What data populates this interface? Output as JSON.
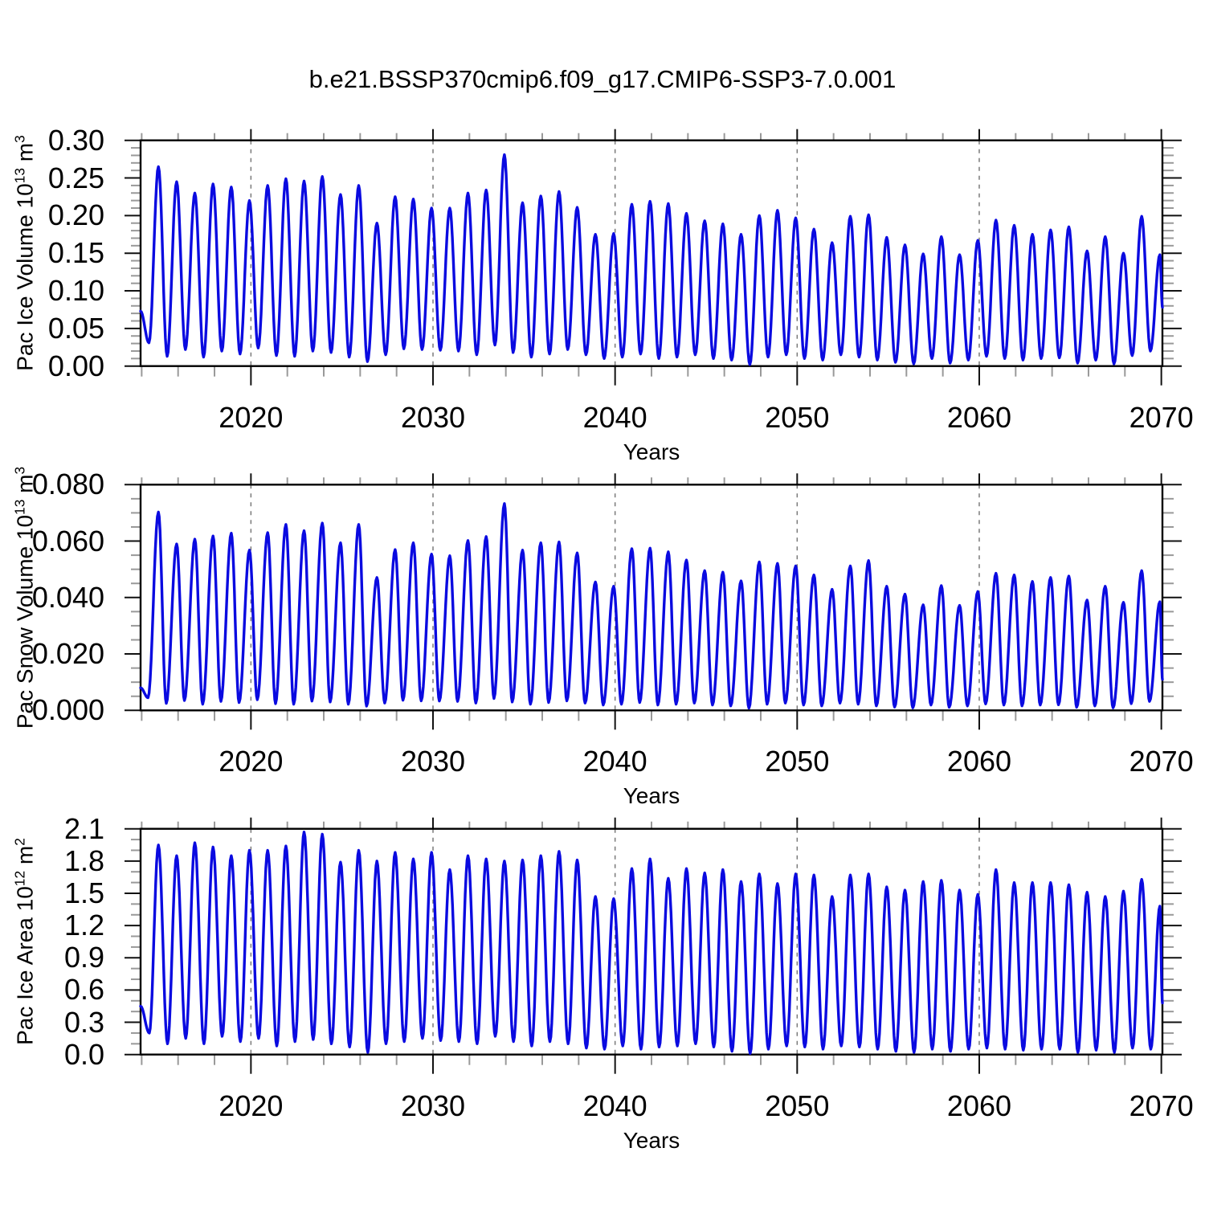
{
  "title": "b.e21.BSSP370cmip6.f09_g17.CMIP6-SSP3-7.0.001",
  "line_color": "#0a0ae0",
  "axes": {
    "x_label": "Years",
    "x_major_ticks": [
      2020,
      2030,
      2040,
      2050,
      2060,
      2070
    ],
    "x_major_tick_labels": [
      "2020",
      "2030",
      "2040",
      "2050",
      "2060",
      "2070"
    ],
    "x_minor_step_years": 2,
    "x_range": [
      2013.94,
      2070.06
    ],
    "gridlines_at": [
      2020,
      2030,
      2040,
      2050,
      2060
    ],
    "grid_style": "dashed-vertical-gray"
  },
  "chart_data": [
    {
      "type": "line",
      "id": "pac-ice-volume",
      "ylabel_text": "Pac Ice Volume 10^13 m^3",
      "ylabel_parts": [
        {
          "text": "Pac Ice Volume 10"
        },
        {
          "text": "13",
          "sup": true
        },
        {
          "text": " m"
        },
        {
          "text": "3",
          "sup": true
        }
      ],
      "xlabel": "Years",
      "xlim": [
        2013.94,
        2070.06
      ],
      "ylim": [
        0.0,
        0.3
      ],
      "y_major_tick_values": [
        0.0,
        0.05,
        0.1,
        0.15,
        0.2,
        0.25,
        0.3
      ],
      "y_major_tick_labels": [
        "0.00",
        "0.05",
        "0.10",
        "0.15",
        "0.20",
        "0.25",
        "0.30"
      ],
      "y_minor_step": 0.01,
      "seasonal_cycle": {
        "start_year": 2014,
        "min_phase": 0.4,
        "max_phase": 0.92,
        "start_point": {
          "t": 2013.94,
          "v": 0.073
        },
        "end_point": {
          "t": 2070.06,
          "v": 0.078
        },
        "annual_max": [
          0.265,
          0.245,
          0.23,
          0.242,
          0.238,
          0.22,
          0.24,
          0.249,
          0.246,
          0.252,
          0.228,
          0.24,
          0.19,
          0.225,
          0.222,
          0.21,
          0.21,
          0.23,
          0.234,
          0.281,
          0.217,
          0.226,
          0.232,
          0.211,
          0.175,
          0.176,
          0.215,
          0.219,
          0.216,
          0.203,
          0.193,
          0.189,
          0.175,
          0.2,
          0.207,
          0.197,
          0.182,
          0.164,
          0.199,
          0.201,
          0.171,
          0.161,
          0.149,
          0.172,
          0.148,
          0.167,
          0.194,
          0.187,
          0.175,
          0.181,
          0.185,
          0.153,
          0.172,
          0.15,
          0.199,
          0.148
        ],
        "annual_min": [
          0.031,
          0.013,
          0.022,
          0.012,
          0.02,
          0.016,
          0.024,
          0.014,
          0.013,
          0.02,
          0.018,
          0.012,
          0.006,
          0.015,
          0.023,
          0.022,
          0.021,
          0.02,
          0.015,
          0.028,
          0.018,
          0.012,
          0.016,
          0.022,
          0.015,
          0.01,
          0.012,
          0.016,
          0.01,
          0.012,
          0.015,
          0.01,
          0.008,
          0.002,
          0.012,
          0.015,
          0.01,
          0.008,
          0.015,
          0.012,
          0.008,
          0.005,
          0.003,
          0.01,
          0.004,
          0.008,
          0.013,
          0.01,
          0.008,
          0.01,
          0.011,
          0.004,
          0.008,
          0.003,
          0.014,
          0.02
        ]
      }
    },
    {
      "type": "line",
      "id": "pac-snow-volume",
      "ylabel_text": "Pac Snow Volume 10^13 m^3",
      "ylabel_parts": [
        {
          "text": "Pac Snow Volume 10"
        },
        {
          "text": "13",
          "sup": true
        },
        {
          "text": " m"
        },
        {
          "text": "3",
          "sup": true
        }
      ],
      "xlabel": "Years",
      "xlim": [
        2013.94,
        2070.06
      ],
      "ylim": [
        0.0,
        0.08
      ],
      "y_major_tick_values": [
        0.0,
        0.02,
        0.04,
        0.06,
        0.08
      ],
      "y_major_tick_labels": [
        "0.000",
        "0.020",
        "0.040",
        "0.060",
        "0.080"
      ],
      "y_minor_step": 0.005,
      "seasonal_cycle": {
        "start_year": 2014,
        "min_phase": 0.35,
        "max_phase": 0.92,
        "start_point": {
          "t": 2013.94,
          "v": 0.008
        },
        "end_point": {
          "t": 2070.06,
          "v": 0.011
        },
        "annual_max": [
          0.0703,
          0.059,
          0.0607,
          0.0618,
          0.0628,
          0.0568,
          0.063,
          0.0659,
          0.0637,
          0.0664,
          0.0594,
          0.0659,
          0.0471,
          0.057,
          0.0594,
          0.0554,
          0.0548,
          0.0602,
          0.0616,
          0.0733,
          0.0568,
          0.0594,
          0.0597,
          0.0558,
          0.0455,
          0.044,
          0.0573,
          0.0575,
          0.0562,
          0.0533,
          0.0495,
          0.049,
          0.0459,
          0.0526,
          0.0521,
          0.0512,
          0.048,
          0.0429,
          0.0512,
          0.0531,
          0.044,
          0.0412,
          0.0374,
          0.0442,
          0.0372,
          0.0421,
          0.0486,
          0.048,
          0.0457,
          0.0471,
          0.0476,
          0.0391,
          0.044,
          0.0383,
          0.0495,
          0.0385
        ],
        "annual_min": [
          0.0045,
          0.0025,
          0.0035,
          0.0022,
          0.0032,
          0.0028,
          0.0038,
          0.0024,
          0.0022,
          0.0033,
          0.003,
          0.0022,
          0.0015,
          0.0026,
          0.0036,
          0.0034,
          0.0033,
          0.0032,
          0.0026,
          0.0042,
          0.003,
          0.0022,
          0.0028,
          0.0034,
          0.0026,
          0.0019,
          0.0022,
          0.0028,
          0.0019,
          0.0022,
          0.0026,
          0.0019,
          0.0016,
          0.0008,
          0.0022,
          0.0026,
          0.0019,
          0.0016,
          0.0026,
          0.0022,
          0.0016,
          0.0012,
          0.0009,
          0.0019,
          0.0011,
          0.0016,
          0.0023,
          0.0019,
          0.0016,
          0.0019,
          0.002,
          0.0011,
          0.0016,
          0.0009,
          0.0024,
          0.0032
        ]
      }
    },
    {
      "type": "line",
      "id": "pac-ice-area",
      "ylabel_text": "Pac Ice Area 10^12 m^2",
      "ylabel_parts": [
        {
          "text": "Pac Ice Area 10"
        },
        {
          "text": "12",
          "sup": true
        },
        {
          "text": " m"
        },
        {
          "text": "2",
          "sup": true
        }
      ],
      "xlabel": "Years",
      "xlim": [
        2013.94,
        2070.06
      ],
      "ylim": [
        0.0,
        2.1
      ],
      "y_major_tick_values": [
        0.0,
        0.3,
        0.6,
        0.9,
        1.2,
        1.5,
        1.8,
        2.1
      ],
      "y_major_tick_labels": [
        "0.0",
        "0.3",
        "0.6",
        "0.9",
        "1.2",
        "1.5",
        "1.8",
        "2.1"
      ],
      "y_minor_step": 0.1,
      "seasonal_cycle": {
        "start_year": 2014,
        "min_phase": 0.42,
        "max_phase": 0.92,
        "start_point": {
          "t": 2013.94,
          "v": 0.45
        },
        "end_point": {
          "t": 2070.06,
          "v": 0.48
        },
        "annual_max": [
          1.95,
          1.85,
          1.97,
          1.93,
          1.85,
          1.9,
          1.9,
          1.94,
          2.07,
          2.05,
          1.79,
          1.9,
          1.8,
          1.88,
          1.82,
          1.88,
          1.72,
          1.85,
          1.82,
          1.8,
          1.81,
          1.85,
          1.89,
          1.81,
          1.47,
          1.45,
          1.73,
          1.82,
          1.64,
          1.73,
          1.69,
          1.72,
          1.61,
          1.68,
          1.59,
          1.68,
          1.67,
          1.47,
          1.67,
          1.68,
          1.56,
          1.53,
          1.61,
          1.62,
          1.53,
          1.49,
          1.72,
          1.6,
          1.6,
          1.6,
          1.58,
          1.51,
          1.47,
          1.52,
          1.63,
          1.38
        ],
        "annual_min": [
          0.2,
          0.1,
          0.15,
          0.1,
          0.17,
          0.12,
          0.15,
          0.08,
          0.12,
          0.14,
          0.1,
          0.07,
          0.02,
          0.1,
          0.12,
          0.15,
          0.13,
          0.12,
          0.1,
          0.17,
          0.12,
          0.08,
          0.12,
          0.1,
          0.06,
          0.05,
          0.08,
          0.05,
          0.07,
          0.08,
          0.1,
          0.07,
          0.03,
          0.01,
          0.05,
          0.08,
          0.07,
          0.05,
          0.08,
          0.07,
          0.05,
          0.03,
          0.02,
          0.05,
          0.03,
          0.05,
          0.06,
          0.05,
          0.04,
          0.05,
          0.05,
          0.02,
          0.04,
          0.02,
          0.06,
          0.05
        ]
      }
    }
  ]
}
